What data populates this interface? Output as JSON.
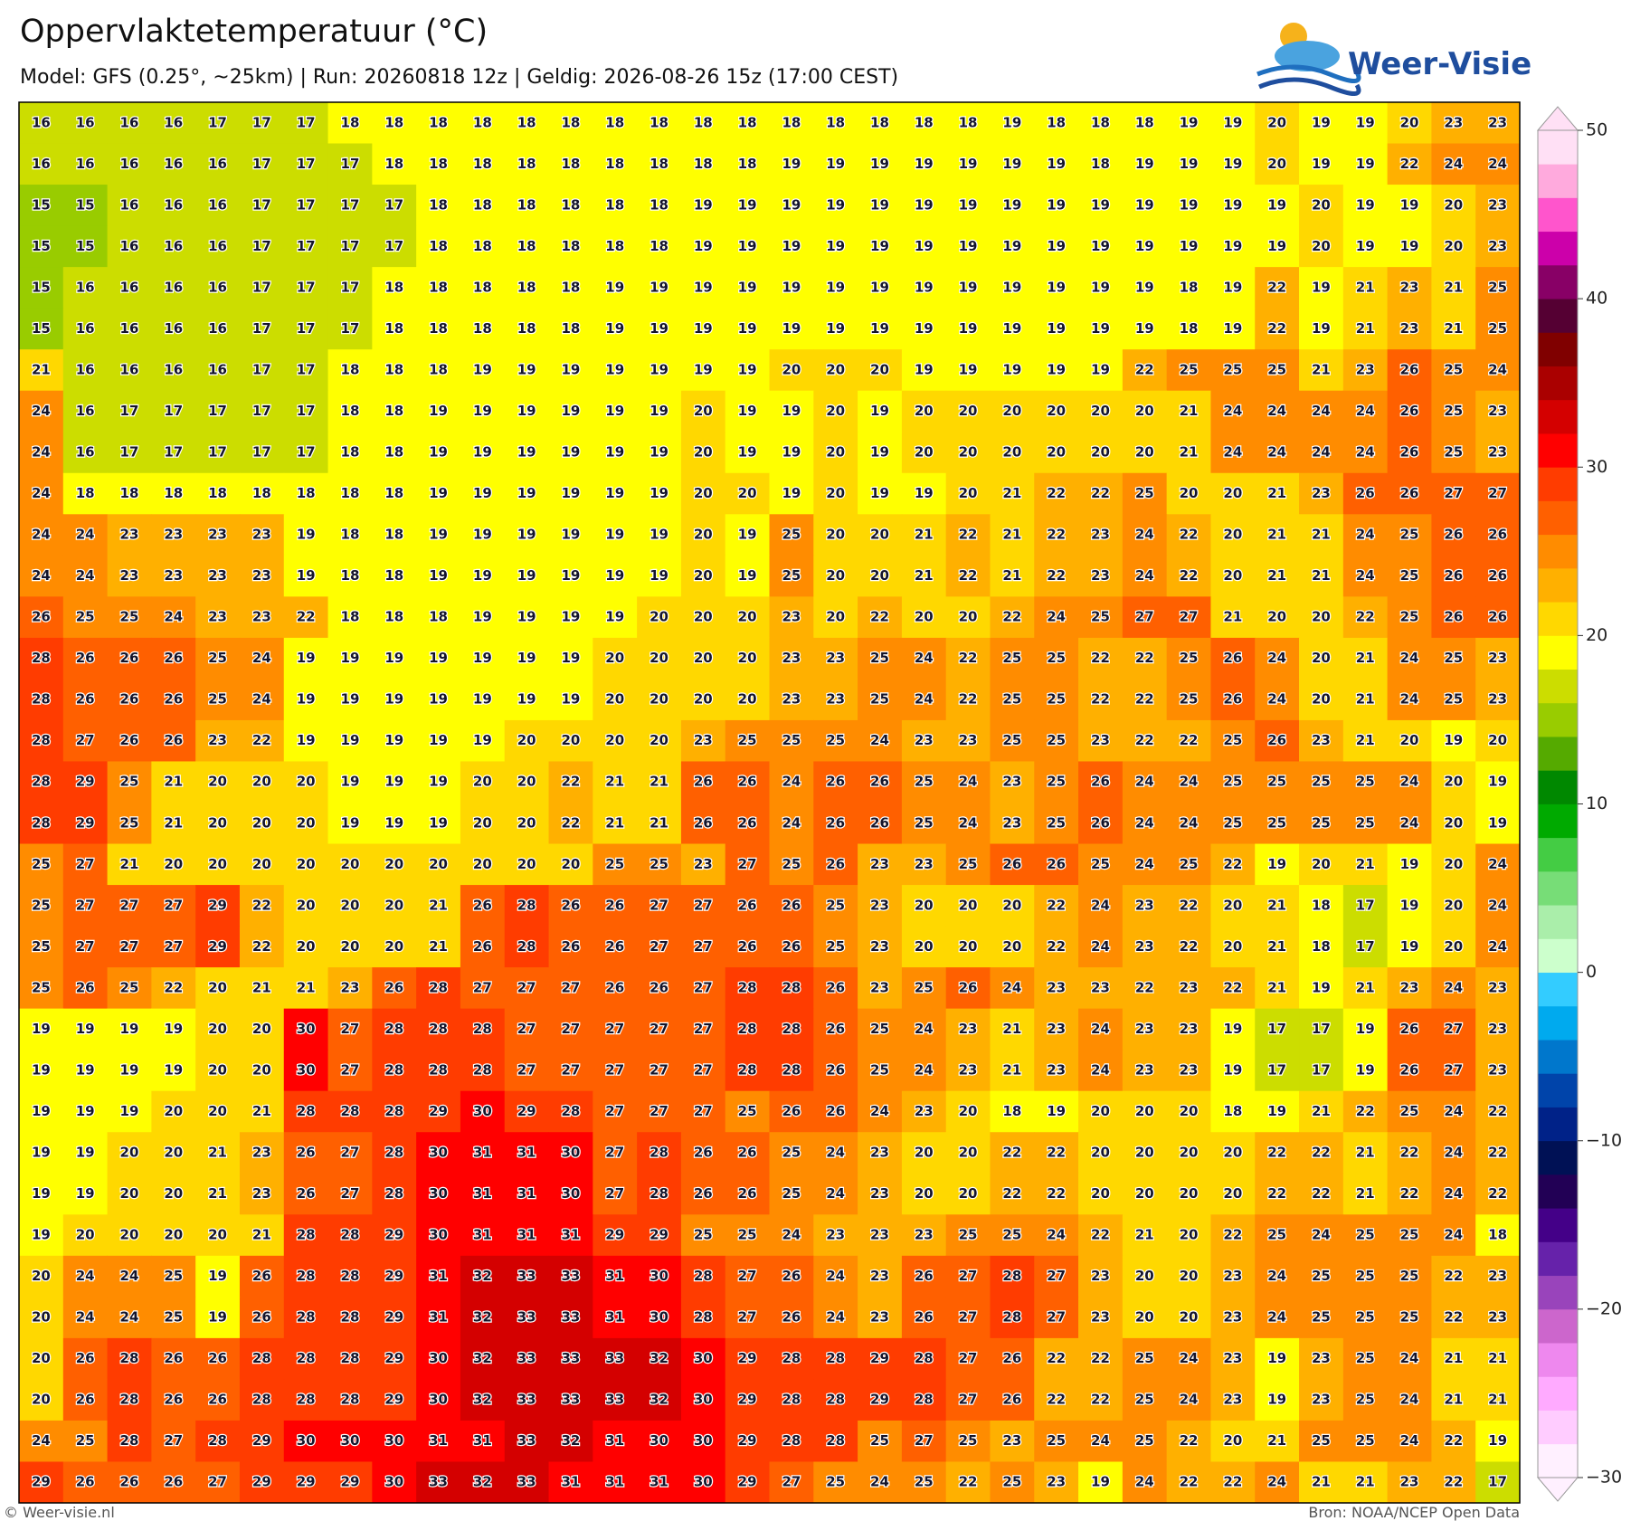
{
  "header": {
    "title": "Oppervlaktetemperatuur (°C)",
    "subtitle": "Model: GFS (0.25°, ~25km)  |  Run: 20260818 12z  |  Geldig: 2026-08-26 15z (17:00 CEST)"
  },
  "logo": "Weer-Visie",
  "map": {
    "grid": [
      [
        16,
        16,
        16,
        16,
        17,
        17,
        17,
        18,
        18,
        18,
        18,
        18,
        18,
        18,
        18,
        18,
        18,
        18,
        18,
        18,
        18,
        18,
        19,
        18,
        18,
        18,
        19,
        19,
        20,
        19,
        19,
        20,
        23,
        23
      ],
      [
        16,
        16,
        16,
        16,
        16,
        17,
        17,
        17,
        18,
        18,
        18,
        18,
        18,
        18,
        18,
        18,
        18,
        19,
        19,
        19,
        19,
        19,
        19,
        19,
        18,
        19,
        19,
        19,
        20,
        19,
        19,
        22,
        24,
        24
      ],
      [
        15,
        15,
        16,
        16,
        16,
        17,
        17,
        17,
        17,
        18,
        18,
        18,
        18,
        18,
        18,
        19,
        19,
        19,
        19,
        19,
        19,
        19,
        19,
        19,
        19,
        19,
        19,
        19,
        19,
        20,
        19,
        19,
        20,
        23
      ],
      [
        15,
        15,
        16,
        16,
        16,
        17,
        17,
        17,
        17,
        18,
        18,
        18,
        18,
        18,
        18,
        19,
        19,
        19,
        19,
        19,
        19,
        19,
        19,
        19,
        19,
        19,
        19,
        19,
        19,
        20,
        19,
        19,
        20,
        23
      ],
      [
        15,
        16,
        16,
        16,
        16,
        17,
        17,
        17,
        18,
        18,
        18,
        18,
        18,
        19,
        19,
        19,
        19,
        19,
        19,
        19,
        19,
        19,
        19,
        19,
        19,
        19,
        18,
        19,
        22,
        19,
        21,
        23,
        21,
        25
      ],
      [
        15,
        16,
        16,
        16,
        16,
        17,
        17,
        17,
        18,
        18,
        18,
        18,
        18,
        19,
        19,
        19,
        19,
        19,
        19,
        19,
        19,
        19,
        19,
        19,
        19,
        19,
        18,
        19,
        22,
        19,
        21,
        23,
        21,
        25
      ],
      [
        21,
        16,
        16,
        16,
        16,
        17,
        17,
        18,
        18,
        18,
        19,
        19,
        19,
        19,
        19,
        19,
        19,
        20,
        20,
        20,
        19,
        19,
        19,
        19,
        19,
        22,
        25,
        25,
        25,
        21,
        23,
        26,
        25,
        24
      ],
      [
        24,
        16,
        17,
        17,
        17,
        17,
        17,
        18,
        18,
        19,
        19,
        19,
        19,
        19,
        19,
        20,
        19,
        19,
        20,
        19,
        20,
        20,
        20,
        20,
        20,
        20,
        21,
        24,
        24,
        24,
        24,
        26,
        25,
        23
      ],
      [
        24,
        16,
        17,
        17,
        17,
        17,
        17,
        18,
        18,
        19,
        19,
        19,
        19,
        19,
        19,
        20,
        19,
        19,
        20,
        19,
        20,
        20,
        20,
        20,
        20,
        20,
        21,
        24,
        24,
        24,
        24,
        26,
        25,
        23
      ],
      [
        24,
        18,
        18,
        18,
        18,
        18,
        18,
        18,
        18,
        19,
        19,
        19,
        19,
        19,
        19,
        20,
        20,
        19,
        20,
        19,
        19,
        20,
        21,
        22,
        22,
        25,
        20,
        20,
        21,
        23,
        26,
        26,
        27,
        27
      ],
      [
        24,
        24,
        23,
        23,
        23,
        23,
        19,
        18,
        18,
        19,
        19,
        19,
        19,
        19,
        19,
        20,
        19,
        25,
        20,
        20,
        21,
        22,
        21,
        22,
        23,
        24,
        22,
        20,
        21,
        21,
        24,
        25,
        26,
        26
      ],
      [
        24,
        24,
        23,
        23,
        23,
        23,
        19,
        18,
        18,
        19,
        19,
        19,
        19,
        19,
        19,
        20,
        19,
        25,
        20,
        20,
        21,
        22,
        21,
        22,
        23,
        24,
        22,
        20,
        21,
        21,
        24,
        25,
        26,
        26
      ],
      [
        26,
        25,
        25,
        24,
        23,
        23,
        22,
        18,
        18,
        18,
        19,
        19,
        19,
        19,
        20,
        20,
        20,
        23,
        20,
        22,
        20,
        20,
        22,
        24,
        25,
        27,
        27,
        21,
        20,
        20,
        22,
        25,
        26,
        26
      ],
      [
        28,
        26,
        26,
        26,
        25,
        24,
        19,
        19,
        19,
        19,
        19,
        19,
        19,
        20,
        20,
        20,
        20,
        23,
        23,
        25,
        24,
        22,
        25,
        25,
        22,
        22,
        25,
        26,
        24,
        20,
        21,
        24,
        25,
        23
      ],
      [
        28,
        26,
        26,
        26,
        25,
        24,
        19,
        19,
        19,
        19,
        19,
        19,
        19,
        20,
        20,
        20,
        20,
        23,
        23,
        25,
        24,
        22,
        25,
        25,
        22,
        22,
        25,
        26,
        24,
        20,
        21,
        24,
        25,
        23
      ],
      [
        28,
        27,
        26,
        26,
        23,
        22,
        19,
        19,
        19,
        19,
        19,
        20,
        20,
        20,
        20,
        23,
        25,
        25,
        25,
        24,
        23,
        23,
        25,
        25,
        23,
        22,
        22,
        25,
        26,
        23,
        21,
        20,
        19,
        20
      ],
      [
        28,
        29,
        25,
        21,
        20,
        20,
        20,
        19,
        19,
        19,
        20,
        20,
        22,
        21,
        21,
        26,
        26,
        24,
        26,
        26,
        25,
        24,
        23,
        25,
        26,
        24,
        24,
        25,
        25,
        25,
        25,
        24,
        20,
        19
      ],
      [
        28,
        29,
        25,
        21,
        20,
        20,
        20,
        19,
        19,
        19,
        20,
        20,
        22,
        21,
        21,
        26,
        26,
        24,
        26,
        26,
        25,
        24,
        23,
        25,
        26,
        24,
        24,
        25,
        25,
        25,
        25,
        24,
        20,
        19
      ],
      [
        25,
        27,
        21,
        20,
        20,
        20,
        20,
        20,
        20,
        20,
        20,
        20,
        20,
        25,
        25,
        23,
        27,
        25,
        26,
        23,
        23,
        25,
        26,
        26,
        25,
        24,
        25,
        22,
        19,
        20,
        21,
        19,
        20,
        24
      ],
      [
        25,
        27,
        27,
        27,
        29,
        22,
        20,
        20,
        20,
        21,
        26,
        28,
        26,
        26,
        27,
        27,
        26,
        26,
        25,
        23,
        20,
        20,
        20,
        22,
        24,
        23,
        22,
        20,
        21,
        18,
        17,
        19,
        20,
        24
      ],
      [
        25,
        27,
        27,
        27,
        29,
        22,
        20,
        20,
        20,
        21,
        26,
        28,
        26,
        26,
        27,
        27,
        26,
        26,
        25,
        23,
        20,
        20,
        20,
        22,
        24,
        23,
        22,
        20,
        21,
        18,
        17,
        19,
        20,
        24
      ],
      [
        25,
        26,
        25,
        22,
        20,
        21,
        21,
        23,
        26,
        28,
        27,
        27,
        27,
        26,
        26,
        27,
        28,
        28,
        26,
        23,
        25,
        26,
        24,
        23,
        23,
        22,
        23,
        22,
        21,
        19,
        21,
        23,
        24,
        23
      ],
      [
        19,
        19,
        19,
        19,
        20,
        20,
        30,
        27,
        28,
        28,
        28,
        27,
        27,
        27,
        27,
        27,
        28,
        28,
        26,
        25,
        24,
        23,
        21,
        23,
        24,
        23,
        23,
        19,
        17,
        17,
        19,
        26,
        27,
        23
      ],
      [
        19,
        19,
        19,
        19,
        20,
        20,
        30,
        27,
        28,
        28,
        28,
        27,
        27,
        27,
        27,
        27,
        28,
        28,
        26,
        25,
        24,
        23,
        21,
        23,
        24,
        23,
        23,
        19,
        17,
        17,
        19,
        26,
        27,
        23
      ],
      [
        19,
        19,
        19,
        20,
        20,
        21,
        28,
        28,
        28,
        29,
        30,
        29,
        28,
        27,
        27,
        27,
        25,
        26,
        26,
        24,
        23,
        20,
        18,
        19,
        20,
        20,
        20,
        18,
        19,
        21,
        22,
        25,
        24,
        22
      ],
      [
        19,
        19,
        20,
        20,
        21,
        23,
        26,
        27,
        28,
        30,
        31,
        31,
        30,
        27,
        28,
        26,
        26,
        25,
        24,
        23,
        20,
        20,
        22,
        22,
        20,
        20,
        20,
        20,
        22,
        22,
        21,
        22,
        24,
        22
      ],
      [
        19,
        19,
        20,
        20,
        21,
        23,
        26,
        27,
        28,
        30,
        31,
        31,
        30,
        27,
        28,
        26,
        26,
        25,
        24,
        23,
        20,
        20,
        22,
        22,
        20,
        20,
        20,
        20,
        22,
        22,
        21,
        22,
        24,
        22
      ],
      [
        19,
        20,
        20,
        20,
        20,
        21,
        28,
        28,
        29,
        30,
        31,
        31,
        31,
        29,
        29,
        25,
        25,
        24,
        23,
        23,
        23,
        25,
        25,
        24,
        22,
        21,
        20,
        22,
        25,
        24,
        25,
        25,
        24,
        18
      ],
      [
        20,
        24,
        24,
        25,
        19,
        26,
        28,
        28,
        29,
        31,
        32,
        33,
        33,
        31,
        30,
        28,
        27,
        26,
        24,
        23,
        26,
        27,
        28,
        27,
        23,
        20,
        20,
        23,
        24,
        25,
        25,
        25,
        22,
        23
      ],
      [
        20,
        24,
        24,
        25,
        19,
        26,
        28,
        28,
        29,
        31,
        32,
        33,
        33,
        31,
        30,
        28,
        27,
        26,
        24,
        23,
        26,
        27,
        28,
        27,
        23,
        20,
        20,
        23,
        24,
        25,
        25,
        25,
        22,
        23
      ],
      [
        20,
        26,
        28,
        26,
        26,
        28,
        28,
        28,
        29,
        30,
        32,
        33,
        33,
        33,
        32,
        30,
        29,
        28,
        28,
        29,
        28,
        27,
        26,
        22,
        22,
        25,
        24,
        23,
        19,
        23,
        25,
        24,
        21,
        21
      ],
      [
        20,
        26,
        28,
        26,
        26,
        28,
        28,
        28,
        29,
        30,
        32,
        33,
        33,
        33,
        32,
        30,
        29,
        28,
        28,
        29,
        28,
        27,
        26,
        22,
        22,
        25,
        24,
        23,
        19,
        23,
        25,
        24,
        21,
        21
      ],
      [
        24,
        25,
        28,
        27,
        28,
        29,
        30,
        30,
        30,
        31,
        31,
        33,
        32,
        31,
        30,
        30,
        29,
        28,
        28,
        25,
        27,
        25,
        23,
        25,
        24,
        25,
        22,
        20,
        21,
        25,
        25,
        24,
        22,
        19
      ],
      [
        29,
        26,
        26,
        26,
        27,
        29,
        29,
        29,
        30,
        33,
        32,
        33,
        31,
        31,
        31,
        30,
        29,
        27,
        25,
        24,
        25,
        22,
        25,
        23,
        19,
        24,
        22,
        22,
        24,
        21,
        21,
        23,
        22,
        17
      ]
    ]
  },
  "colorbar": {
    "lim": [
      -30,
      50
    ],
    "ticks": [
      {
        "value": -30,
        "label": "−30"
      },
      {
        "value": -20,
        "label": "−20"
      },
      {
        "value": -10,
        "label": "−10"
      },
      0,
      10,
      20,
      30,
      40,
      50
    ],
    "colors": [
      "#fff0ff",
      "#ffccff",
      "#ffaaff",
      "#ee88ee",
      "#cc66cc",
      "#9944bb",
      "#6622aa",
      "#440088",
      "#220055",
      "#001155",
      "#002288",
      "#0044aa",
      "#0077cc",
      "#00aaee",
      "#33ccff",
      "#ccffcc",
      "#aaeeaa",
      "#77dd77",
      "#44cc44",
      "#00aa00",
      "#008800",
      "#55aa00",
      "#99cc00",
      "#ccdd00",
      "#ffff00",
      "#ffd800",
      "#ffb000",
      "#ff8c00",
      "#ff6000",
      "#ff3c00",
      "#ff0000",
      "#d40000",
      "#aa0000",
      "#800000",
      "#550033",
      "#880066",
      "#cc00aa",
      "#ff55cc",
      "#ffaadd",
      "#ffe0f5"
    ]
  },
  "footer": {
    "left": "© Weer-visie.nl",
    "right": "Bron: NOAA/NCEP Open Data"
  }
}
